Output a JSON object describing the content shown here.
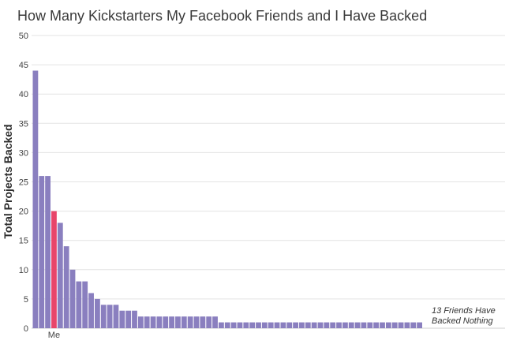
{
  "chart_data": {
    "type": "bar",
    "title": "How Many Kickstarters My Facebook Friends and I Have Backed",
    "ylabel": "Total Projects Backed",
    "xlabel": "",
    "ylim": [
      0,
      50
    ],
    "yticks": [
      0,
      5,
      10,
      15,
      20,
      25,
      30,
      35,
      40,
      45,
      50
    ],
    "grid": true,
    "highlight_label": "Me",
    "highlight_index": 3,
    "values": [
      44,
      26,
      26,
      20,
      18,
      14,
      10,
      8,
      8,
      6,
      5,
      4,
      4,
      4,
      3,
      3,
      3,
      2,
      2,
      2,
      2,
      2,
      2,
      2,
      2,
      2,
      2,
      2,
      2,
      2,
      1,
      1,
      1,
      1,
      1,
      1,
      1,
      1,
      1,
      1,
      1,
      1,
      1,
      1,
      1,
      1,
      1,
      1,
      1,
      1,
      1,
      1,
      1,
      1,
      1,
      1,
      1,
      1,
      1,
      1,
      1,
      1,
      1
    ],
    "annotation": [
      "13 Friends Have",
      "Backed Nothing"
    ]
  },
  "colors": {
    "bar": "#8a7fbf",
    "highlight": "#e8456a",
    "grid": "#e3e3e3",
    "axis": "#cfcfcf"
  }
}
